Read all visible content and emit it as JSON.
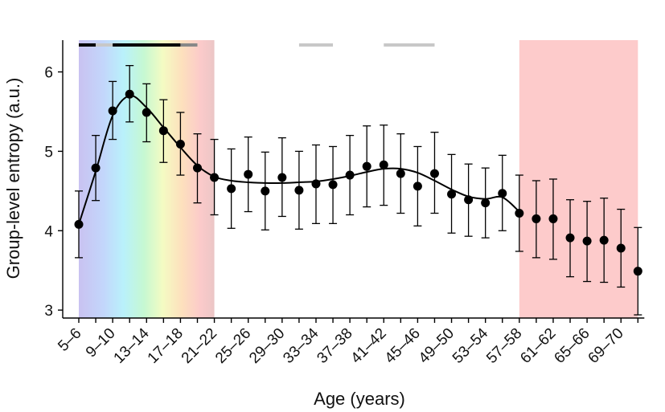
{
  "chart_data": {
    "type": "line",
    "title": "",
    "xlabel": "Age (years)",
    "ylabel": "Group-level entropy (a.u.)",
    "ylim": [
      2.9,
      6.4
    ],
    "yticks": [
      3,
      4,
      5,
      6
    ],
    "categories": [
      "5–6",
      "7–8",
      "9–10",
      "11–12",
      "13–14",
      "15–16",
      "17–18",
      "19–20",
      "21–22",
      "23–24",
      "25–26",
      "27–28",
      "29–30",
      "31–32",
      "33–34",
      "35–36",
      "37–38",
      "39–40",
      "41–42",
      "43–44",
      "45–46",
      "47–48",
      "49–50",
      "51–52",
      "53–54",
      "55–56",
      "57–58",
      "59–60",
      "61–62",
      "63–64",
      "65–66",
      "67–68",
      "69–70",
      "71–72"
    ],
    "xtick_labels": [
      "5–6",
      "9–10",
      "13–14",
      "17–18",
      "21–22",
      "25–26",
      "29–30",
      "33–34",
      "37–38",
      "41–42",
      "45–46",
      "49–50",
      "53–54",
      "57–58",
      "61–62",
      "65–66",
      "69–70"
    ],
    "series": [
      {
        "name": "Group-level entropy",
        "values": [
          4.08,
          4.79,
          5.51,
          5.72,
          5.49,
          5.26,
          5.09,
          4.79,
          4.67,
          4.53,
          4.71,
          4.5,
          4.67,
          4.51,
          4.59,
          4.58,
          4.7,
          4.81,
          4.83,
          4.72,
          4.56,
          4.72,
          4.46,
          4.39,
          4.35,
          4.47,
          4.22,
          4.15,
          4.15,
          3.91,
          3.87,
          3.88,
          3.78,
          3.49
        ],
        "error_low": [
          3.66,
          4.38,
          5.15,
          5.37,
          5.12,
          4.86,
          4.7,
          4.35,
          4.2,
          4.03,
          4.24,
          4.01,
          4.18,
          4.02,
          4.09,
          4.09,
          4.2,
          4.3,
          4.32,
          4.22,
          4.06,
          4.22,
          3.97,
          3.93,
          3.91,
          4.0,
          3.74,
          3.66,
          3.64,
          3.42,
          3.36,
          3.35,
          3.29,
          2.94
        ],
        "error_high": [
          4.5,
          5.2,
          5.88,
          6.08,
          5.85,
          5.65,
          5.49,
          5.22,
          5.15,
          5.03,
          5.18,
          4.99,
          5.17,
          5.0,
          5.08,
          5.06,
          5.2,
          5.32,
          5.33,
          5.22,
          5.06,
          5.24,
          4.96,
          4.84,
          4.79,
          4.95,
          4.7,
          4.63,
          4.65,
          4.39,
          4.37,
          4.41,
          4.27,
          4.04
        ]
      }
    ],
    "smooth_fit_values": [
      4.08,
      4.75,
      5.45,
      5.7,
      5.55,
      5.3,
      5.05,
      4.82,
      4.68,
      4.63,
      4.61,
      4.6,
      4.6,
      4.61,
      4.62,
      4.65,
      4.69,
      4.74,
      4.78,
      4.78,
      4.73,
      4.63,
      4.52,
      4.43,
      4.4,
      4.42,
      4.24
    ],
    "shaded_regions": [
      {
        "style": "rainbow",
        "from_index": 0,
        "to_index": 8
      },
      {
        "style": "red",
        "from_index": 26,
        "to_index": 33
      }
    ],
    "significance_bars": [
      {
        "from_index": 0,
        "to_index": 1,
        "shade": "black"
      },
      {
        "from_index": 1,
        "to_index": 2,
        "shade": "light"
      },
      {
        "from_index": 2,
        "to_index": 6,
        "shade": "black"
      },
      {
        "from_index": 6,
        "to_index": 7,
        "shade": "medium"
      },
      {
        "from_index": 13,
        "to_index": 15,
        "shade": "light"
      },
      {
        "from_index": 18,
        "to_index": 21,
        "shade": "light"
      }
    ],
    "colors": {
      "marker": "#000000",
      "sig_black": "#000000",
      "sig_medium": "#888888",
      "sig_light": "#c8c8c8",
      "red_region": "#fdcbcb"
    }
  }
}
